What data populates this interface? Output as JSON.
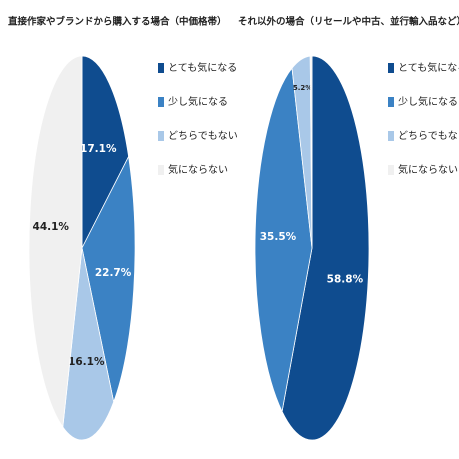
{
  "chart_data": [
    {
      "type": "pie",
      "title": "直接作家やブランドから購入する場合（中価格帯）",
      "categories": [
        "とても気になる",
        "少し気になる",
        "どちらでもない",
        "気にならない"
      ],
      "values": [
        17.1,
        22.7,
        16.1,
        44.1
      ],
      "value_labels": [
        "17.1%",
        "22.7%",
        "16.1%",
        "44.1%"
      ],
      "colors": [
        "#0f4c8f",
        "#3b82c4",
        "#a9c8e8",
        "#f0f0f0"
      ]
    },
    {
      "type": "pie",
      "title": "それ以外の場合（リセールや中古、並行輸入品など）（中価格帯）",
      "categories": [
        "とても気になる",
        "少し気になる",
        "どちらでもない",
        "気にならない"
      ],
      "values": [
        58.8,
        35.5,
        5.2,
        0.5
      ],
      "value_labels": [
        "58.8%",
        "35.5%",
        "5.2%",
        null
      ],
      "colors": [
        "#0f4c8f",
        "#3b82c4",
        "#a9c8e8",
        "#f0f0f0"
      ]
    }
  ]
}
